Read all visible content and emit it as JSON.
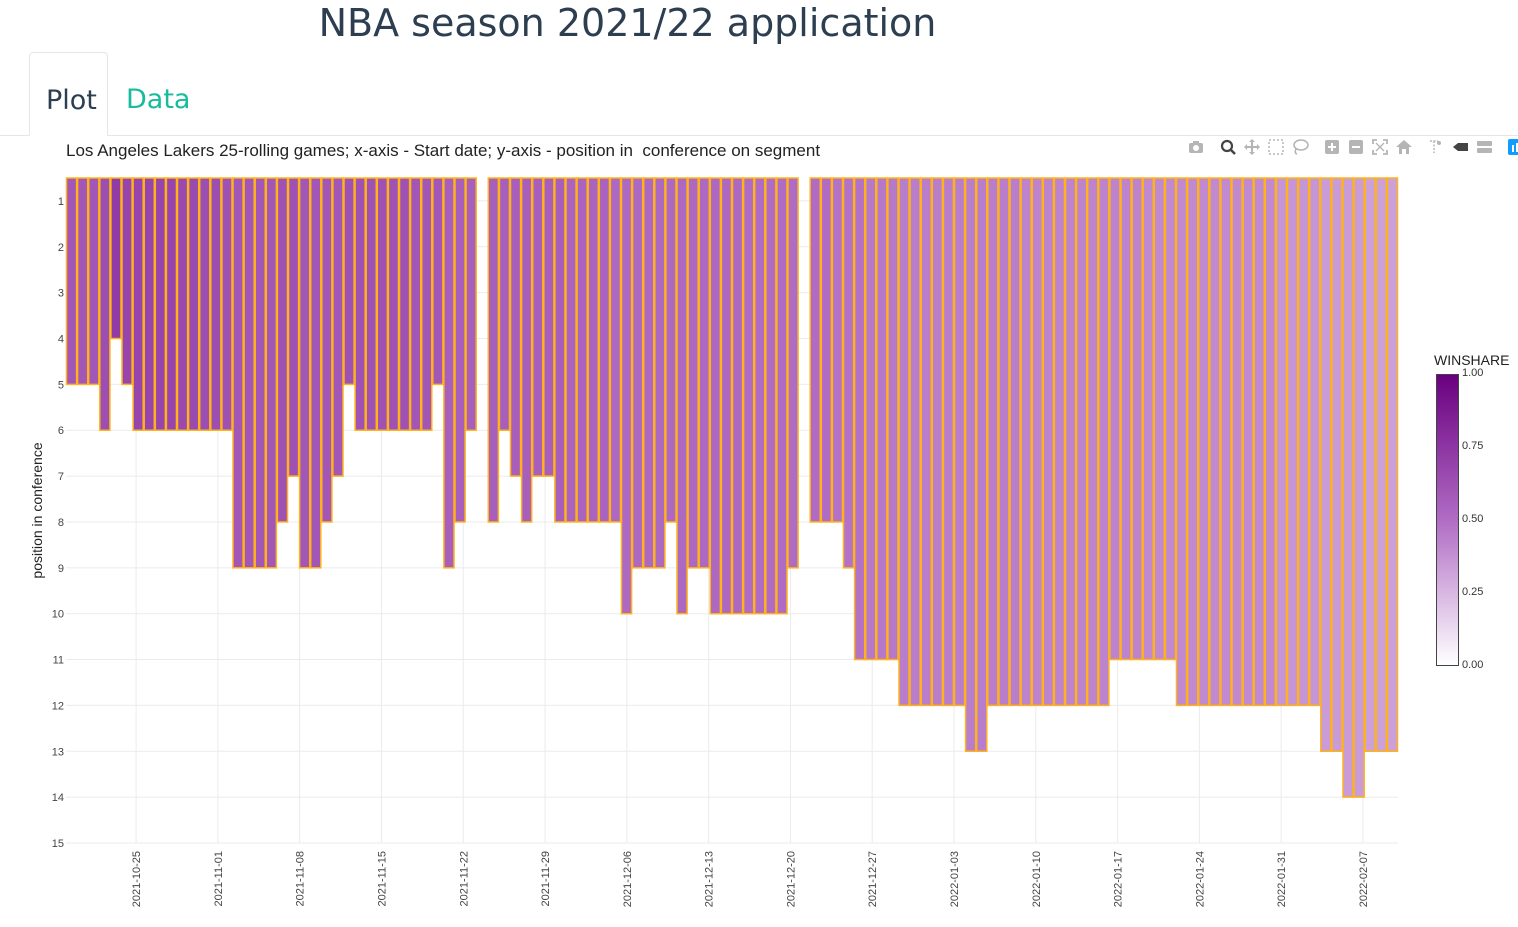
{
  "app": {
    "title": "NBA season 2021/22 application"
  },
  "tabs": [
    {
      "label": "Plot",
      "active": true
    },
    {
      "label": "Data",
      "active": false
    }
  ],
  "modebar": {
    "icons": [
      "camera-icon",
      "zoom-icon",
      "pan-icon",
      "box-select-icon",
      "lasso-icon",
      "zoom-in-icon",
      "zoom-out-icon",
      "autoscale-icon",
      "reset-axes-icon",
      "spike-lines-icon",
      "hover-closest-icon",
      "hover-compare-icon",
      "plotly-logo-icon"
    ]
  },
  "colors": {
    "bar_outline": "#ffb31a",
    "scale_low": "#ffffff",
    "scale_high": "#6a0080",
    "accent_tab": "#18bc9c",
    "title_text": "#2c3e50"
  },
  "chart_data": {
    "type": "bar",
    "title": "Los Angeles Lakers 25-rolling games; x-axis - Start date; y-axis - position in  conference on segment",
    "xlabel": "",
    "ylabel": "position in conference",
    "x_start": "2021-10-19",
    "x_end": "2022-02-10",
    "xticks": [
      "2021-10-25",
      "2021-11-01",
      "2021-11-08",
      "2021-11-15",
      "2021-11-22",
      "2021-11-29",
      "2021-12-06",
      "2021-12-13",
      "2021-12-20",
      "2021-12-27",
      "2022-01-03",
      "2022-01-10",
      "2022-01-17",
      "2022-01-24",
      "2022-01-31",
      "2022-02-07"
    ],
    "ylim": [
      15,
      0.5
    ],
    "yticks": [
      1,
      2,
      3,
      4,
      5,
      6,
      7,
      8,
      9,
      10,
      11,
      12,
      13,
      14,
      15
    ],
    "y_reversed": true,
    "grid": true,
    "colorbar": {
      "title": "WINSHARE",
      "range": [
        0,
        1
      ],
      "ticks": [
        "0.00",
        "0.25",
        "0.50",
        "0.75",
        "1.00"
      ]
    },
    "series": [
      {
        "values": [
          5,
          5,
          5,
          6,
          4,
          5,
          6,
          6,
          6,
          6,
          6,
          6,
          6,
          6,
          6,
          9,
          9,
          9,
          9,
          8,
          7,
          9,
          9,
          8,
          7,
          5,
          6,
          6,
          6,
          6,
          6,
          6,
          6,
          5,
          9,
          8,
          6,
          null,
          8,
          6,
          7,
          8,
          7,
          7,
          8,
          8,
          8,
          8,
          8,
          8,
          10,
          9,
          9,
          9,
          8,
          10,
          9,
          9,
          10,
          10,
          10,
          10,
          10,
          10,
          10,
          9,
          null,
          8,
          8,
          8,
          9,
          11,
          11,
          11,
          11,
          12,
          12,
          12,
          12,
          12,
          12,
          13,
          13,
          12,
          12,
          12,
          12,
          12,
          12,
          12,
          12,
          12,
          12,
          12,
          11,
          11,
          11,
          11,
          11,
          11,
          12,
          12,
          12,
          12,
          12,
          12,
          12,
          12,
          12,
          12,
          12,
          12,
          12,
          13,
          13,
          14,
          14,
          13,
          13,
          13
        ],
        "winshare": [
          0.6,
          0.6,
          0.6,
          0.64,
          0.72,
          0.68,
          0.68,
          0.68,
          0.68,
          0.68,
          0.66,
          0.66,
          0.64,
          0.64,
          0.62,
          0.6,
          0.6,
          0.6,
          0.6,
          0.62,
          0.62,
          0.6,
          0.6,
          0.6,
          0.6,
          0.62,
          0.62,
          0.62,
          0.62,
          0.62,
          0.62,
          0.6,
          0.6,
          0.6,
          0.56,
          0.56,
          0.56,
          null,
          0.56,
          0.56,
          0.56,
          0.56,
          0.56,
          0.56,
          0.56,
          0.54,
          0.54,
          0.54,
          0.54,
          0.52,
          0.52,
          0.52,
          0.52,
          0.52,
          0.52,
          0.52,
          0.52,
          0.52,
          0.52,
          0.52,
          0.52,
          0.5,
          0.5,
          0.5,
          0.5,
          0.5,
          null,
          0.5,
          0.5,
          0.48,
          0.48,
          0.48,
          0.46,
          0.46,
          0.46,
          0.44,
          0.44,
          0.44,
          0.44,
          0.44,
          0.44,
          0.44,
          0.44,
          0.44,
          0.44,
          0.44,
          0.42,
          0.42,
          0.42,
          0.42,
          0.42,
          0.42,
          0.42,
          0.42,
          0.42,
          0.42,
          0.42,
          0.4,
          0.4,
          0.4,
          0.4,
          0.4,
          0.4,
          0.4,
          0.4,
          0.4,
          0.4,
          0.4,
          0.4,
          0.36,
          0.36,
          0.36,
          0.36,
          0.34,
          0.34,
          0.34,
          0.34,
          0.32,
          0.32,
          0.32
        ]
      }
    ]
  }
}
